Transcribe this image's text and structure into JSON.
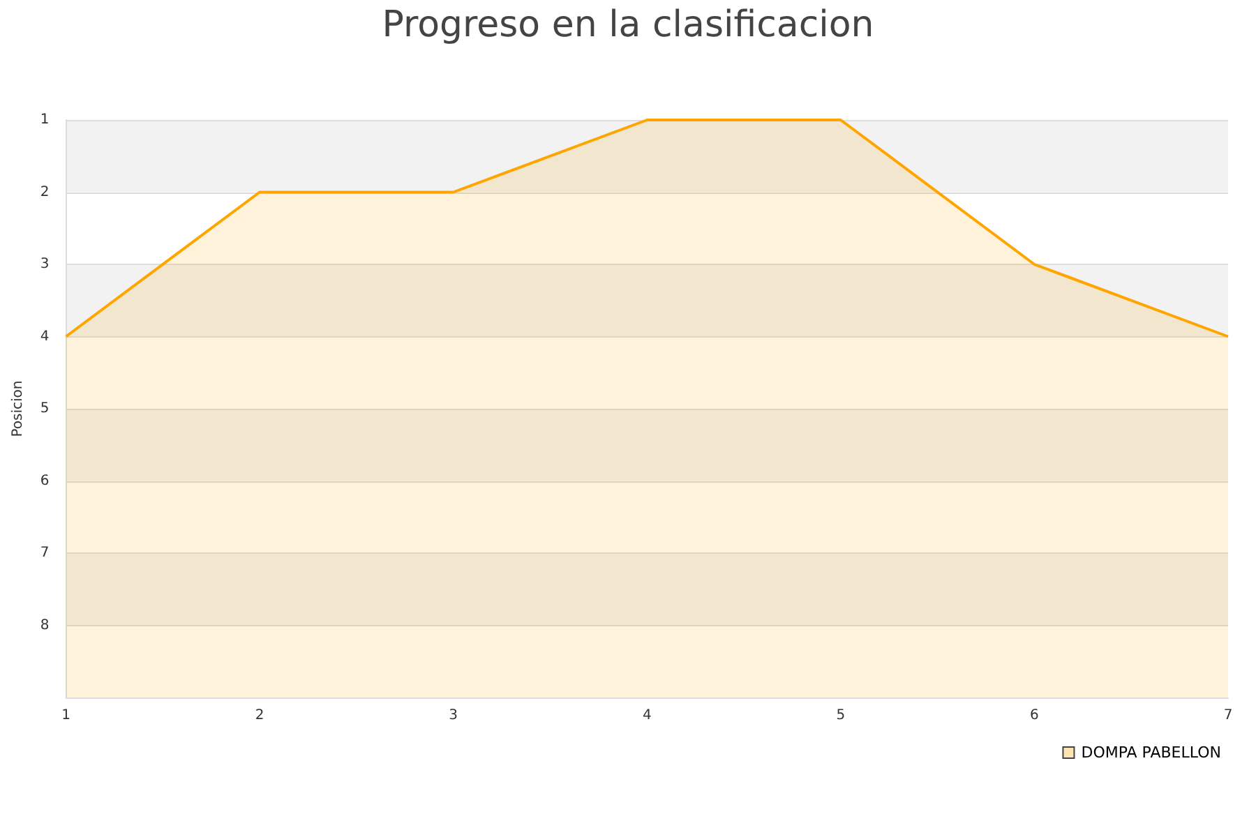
{
  "chart_data": {
    "type": "area",
    "title": "Progreso en la clasificacion",
    "ylabel": "Posicion",
    "x": [
      1,
      2,
      3,
      4,
      5,
      6,
      7
    ],
    "series": [
      {
        "name": "DOMPA PABELLON",
        "color": "#ffa500",
        "values": [
          4,
          2,
          2,
          1,
          1,
          3,
          4
        ]
      }
    ],
    "xlim": [
      1,
      7
    ],
    "xticks": [
      1,
      2,
      3,
      4,
      5,
      6,
      7
    ],
    "ylim": [
      9,
      1
    ],
    "yticks": [
      1,
      2,
      3,
      4,
      5,
      6,
      7,
      8
    ],
    "grid": "y",
    "legend": "bottom right",
    "marker": "none"
  }
}
